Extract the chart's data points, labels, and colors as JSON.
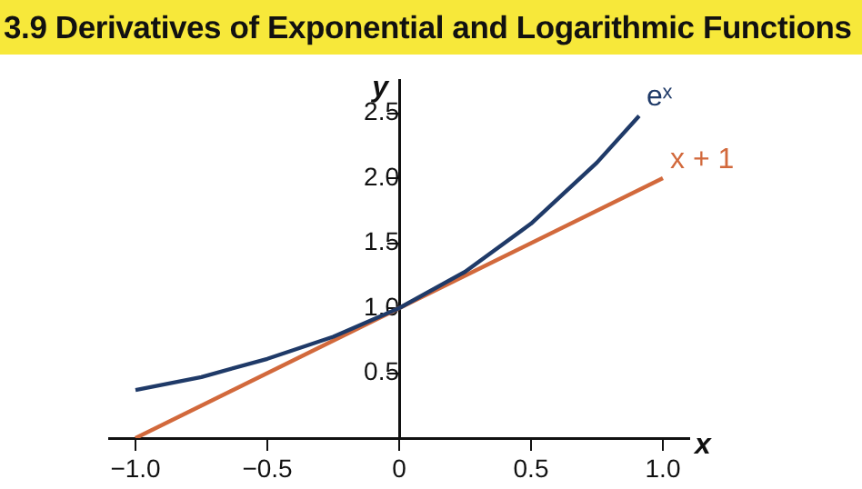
{
  "chart_data": {
    "type": "line",
    "title": "3.9 Derivatives of Exponential and Logarithmic Functions",
    "xlabel": "x",
    "ylabel": "y",
    "xlim": [
      -1.1,
      1.1
    ],
    "ylim": [
      0,
      2.75
    ],
    "xticks": [
      {
        "value": -1,
        "label": "−1.0"
      },
      {
        "value": -0.5,
        "label": "−0.5"
      },
      {
        "value": 0,
        "label": "0"
      },
      {
        "value": 0.5,
        "label": "0.5"
      },
      {
        "value": 1,
        "label": "1.0"
      }
    ],
    "yticks": [
      {
        "value": 0.5,
        "label": "0.5"
      },
      {
        "value": 1,
        "label": "1.0"
      },
      {
        "value": 1.5,
        "label": "1.5"
      },
      {
        "value": 2,
        "label": "2.0"
      },
      {
        "value": 2.5,
        "label": "2.5"
      }
    ],
    "marker": "none",
    "series": [
      {
        "name": "eˣ",
        "color": "#1f3a68",
        "x": [
          -1,
          -0.75,
          -0.5,
          -0.25,
          0,
          0.25,
          0.5,
          0.75,
          0.91
        ],
        "values": [
          0.37,
          0.47,
          0.61,
          0.78,
          1,
          1.28,
          1.65,
          2.12,
          2.48
        ]
      },
      {
        "name": "x + 1",
        "color": "#d2693c",
        "x": [
          -1,
          1
        ],
        "values": [
          0,
          2
        ]
      }
    ]
  }
}
